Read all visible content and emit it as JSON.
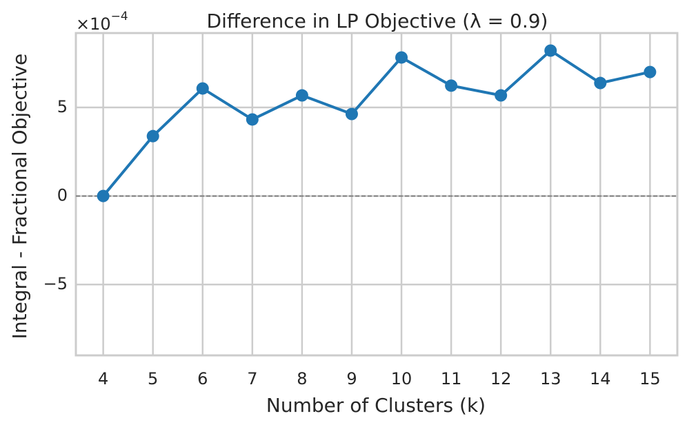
{
  "chart_data": {
    "type": "line",
    "title": "Difference in LP Objective (λ = 0.9)",
    "xlabel": "Number of Clusters (k)",
    "ylabel": "Integral - Fractional Objective",
    "y_offset_label": "×10",
    "y_offset_exponent": "−4",
    "x": [
      4,
      5,
      6,
      7,
      8,
      9,
      10,
      11,
      12,
      13,
      14,
      15
    ],
    "series": [
      {
        "color": "#1f77b4",
        "values": [
          0,
          3.38,
          6.07,
          4.32,
          5.68,
          4.63,
          7.82,
          6.23,
          5.68,
          8.21,
          6.38,
          7.0
        ]
      }
    ],
    "xlim": [
      3.45,
      15.55
    ],
    "xticks": [
      4,
      5,
      6,
      7,
      8,
      9,
      10,
      11,
      12,
      13,
      14,
      15
    ],
    "ylim": [
      -9,
      9.2
    ],
    "yticks": [
      {
        "value": -5,
        "label": "−5"
      },
      0,
      5
    ],
    "hline": 0,
    "grid": true
  }
}
